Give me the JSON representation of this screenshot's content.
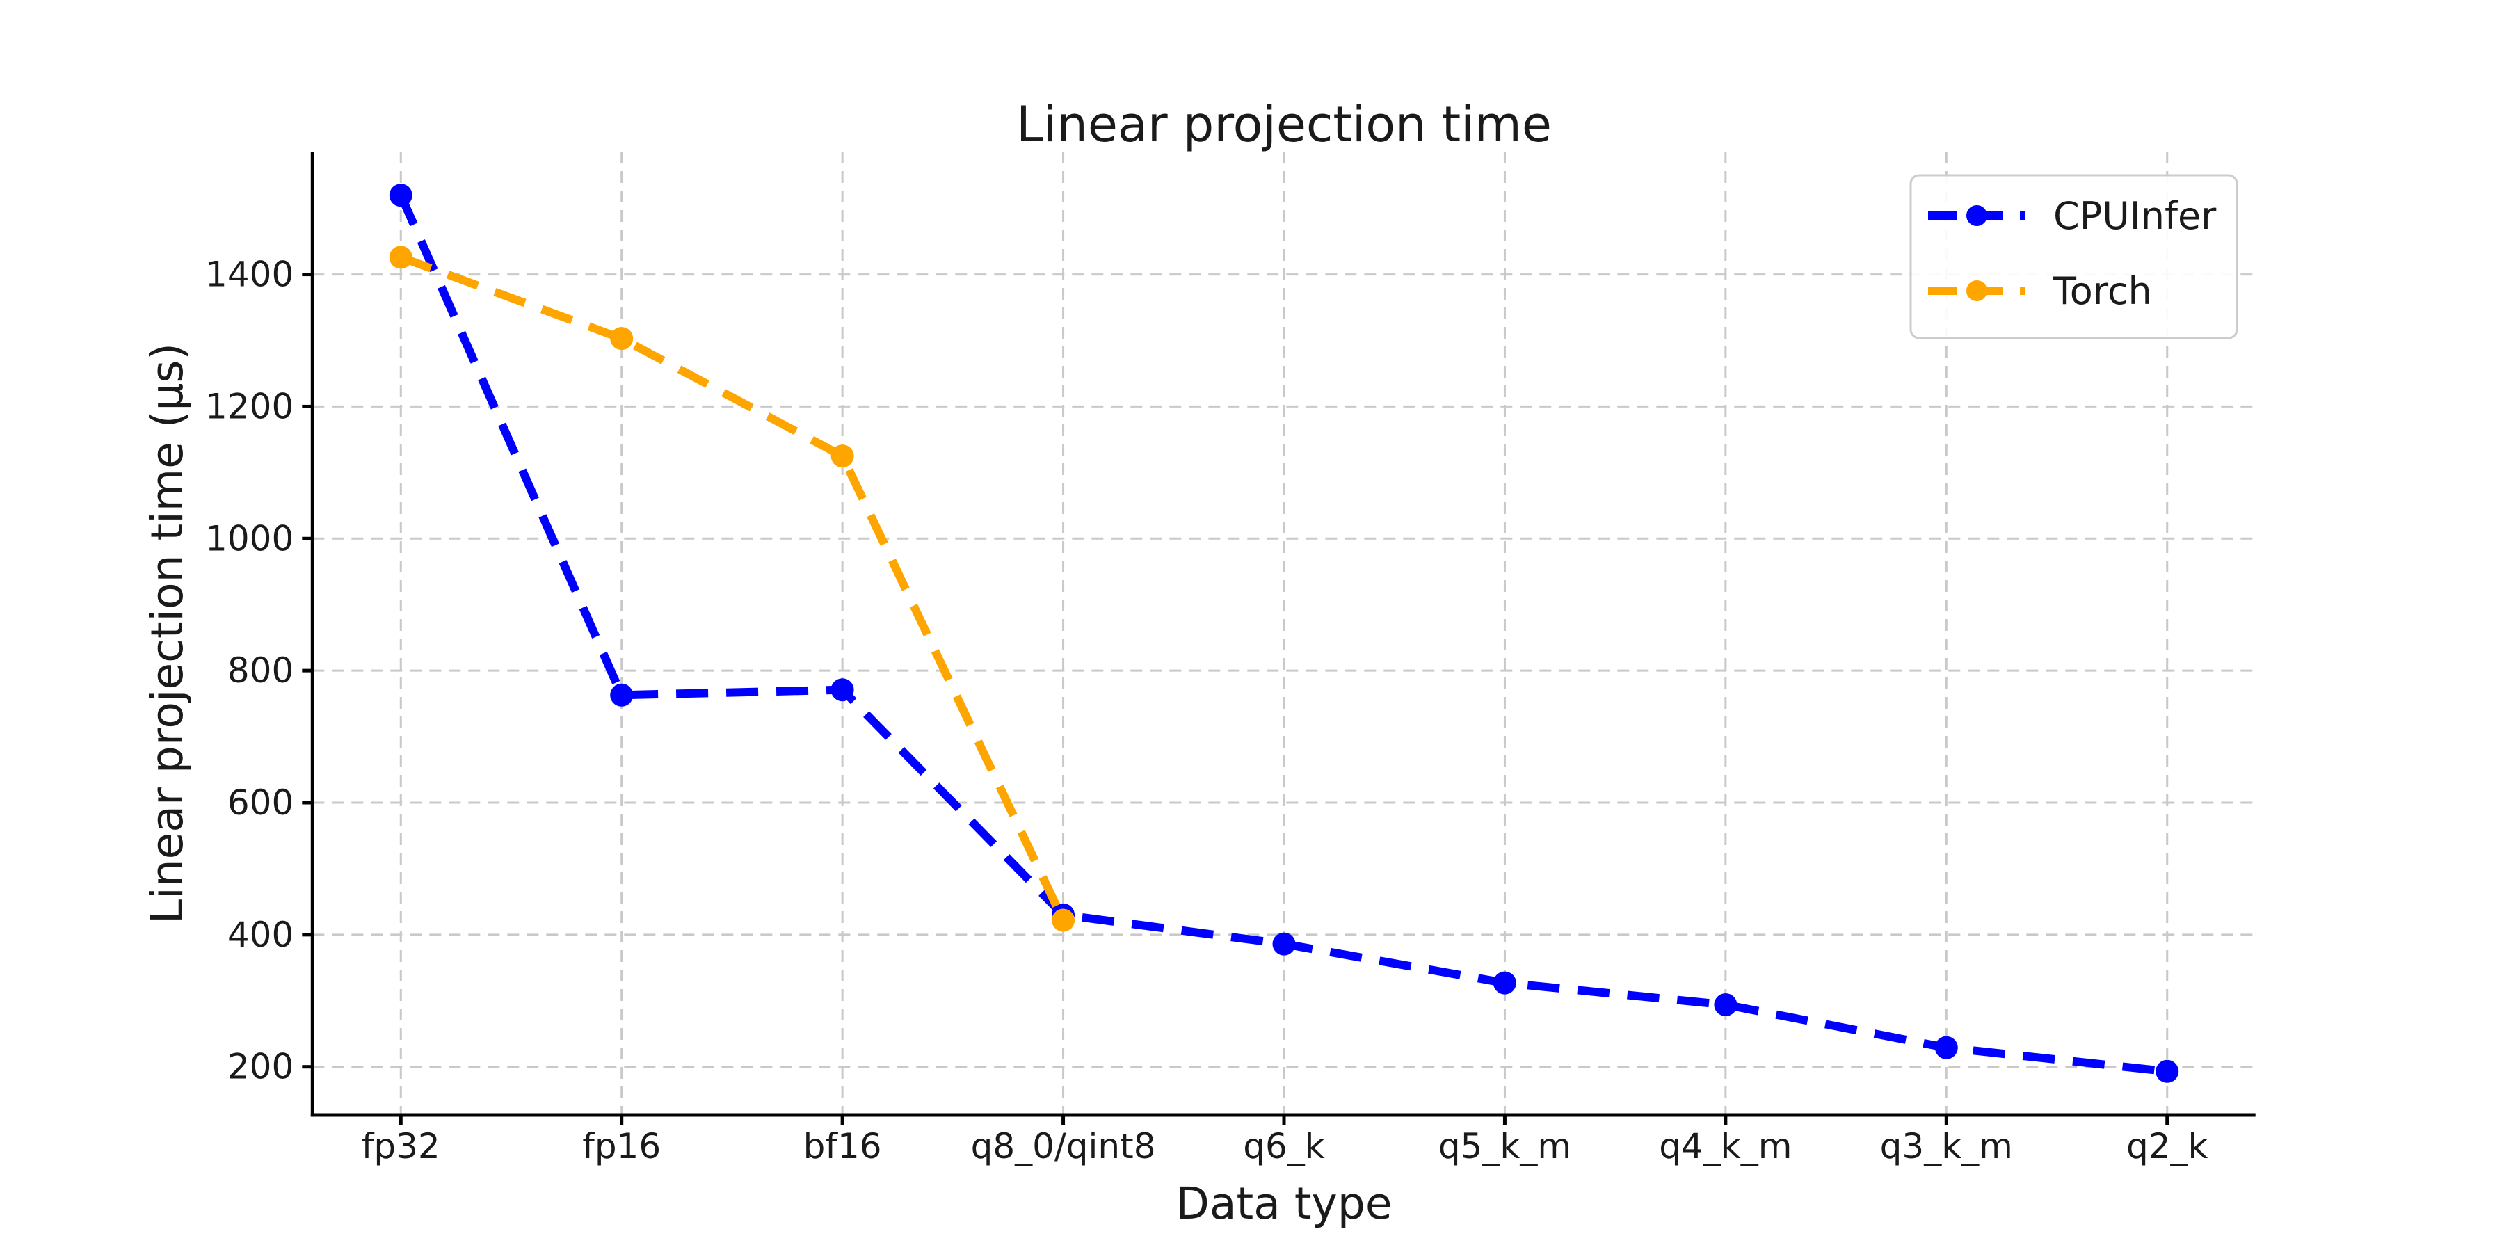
{
  "page": {
    "background": "#ffffff"
  },
  "chart_data": {
    "type": "line",
    "title": "Linear projection time",
    "xlabel": "Data type",
    "ylabel": "Linear projection time (μs)",
    "categories": [
      "fp32",
      "fp16",
      "bf16",
      "q8_0/qint8",
      "q6_k",
      "q5_k_m",
      "q4_k_m",
      "q3_k_m",
      "q2_k"
    ],
    "y_ticks": [
      200,
      400,
      600,
      800,
      1000,
      1200,
      1400
    ],
    "ylim": [
      127,
      1586
    ],
    "grid": true,
    "grid_style": "dashed",
    "legend_position": "upper right",
    "series": [
      {
        "name": "CPUInfer",
        "color": "#0000ff",
        "linestyle": "dashed",
        "marker": "circle",
        "values": [
          1520,
          763,
          771,
          430,
          386,
          327,
          294,
          229,
          193
        ]
      },
      {
        "name": "Torch",
        "color": "#ffa500",
        "linestyle": "dashed",
        "marker": "circle",
        "values": [
          1426,
          1303,
          1125,
          422,
          null,
          null,
          null,
          null,
          null
        ]
      }
    ],
    "styles": {
      "grid_color": "#c9c9c9",
      "text_color": "#1a1a1a",
      "spine_color": "#000000",
      "legend_border": "#cccccc",
      "legend_fill": "#ffffff"
    }
  }
}
